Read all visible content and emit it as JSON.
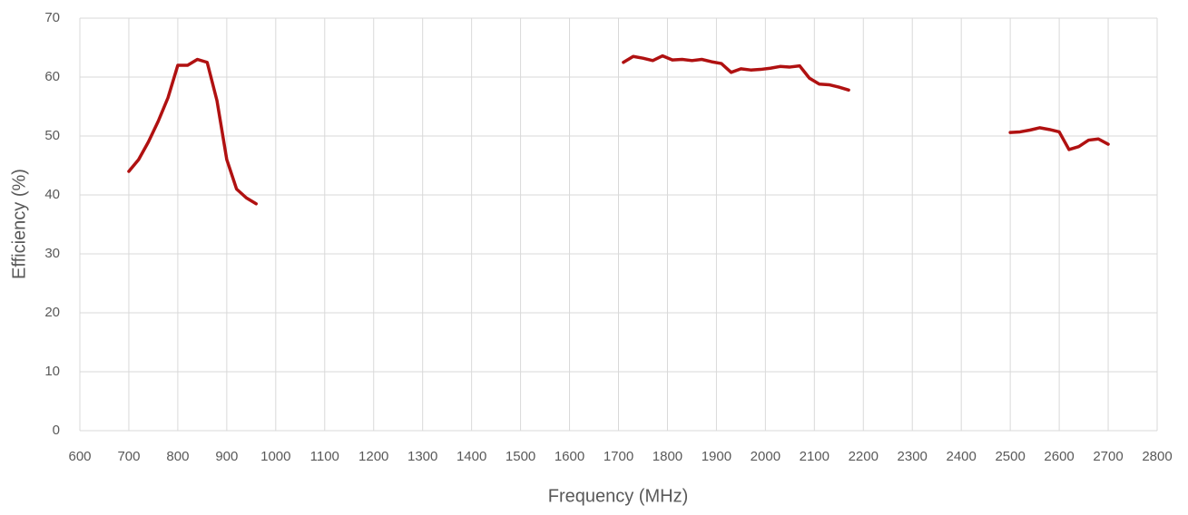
{
  "chart_data": {
    "type": "line",
    "x_label": "Frequency (MHz)",
    "y_label": "Efficiency (%)",
    "x": [
      700,
      720,
      740,
      760,
      780,
      800,
      820,
      840,
      860,
      880,
      900,
      920,
      940,
      960,
      1700,
      1710,
      1730,
      1750,
      1770,
      1790,
      1810,
      1830,
      1850,
      1870,
      1890,
      1910,
      1930,
      1950,
      1970,
      1990,
      2010,
      2030,
      2050,
      2070,
      2090,
      2110,
      2130,
      2150,
      2170,
      2400,
      2500,
      2520,
      2540,
      2560,
      2580,
      2600,
      2620,
      2640,
      2660,
      2680,
      2700
    ],
    "series": [
      {
        "color": "#b01111",
        "values": [
          44,
          46,
          49,
          52.5,
          56.5,
          62,
          62,
          63,
          62.5,
          56,
          46,
          41,
          39.5,
          38.5,
          null,
          62.5,
          63.5,
          63.2,
          62.8,
          63.6,
          62.9,
          63,
          62.8,
          63,
          62.6,
          62.3,
          60.8,
          61.4,
          61.2,
          61.3,
          61.5,
          61.8,
          61.7,
          61.9,
          59.8,
          58.8,
          58.7,
          58.3,
          57.8,
          null,
          50.6,
          50.7,
          51,
          51.4,
          51.1,
          50.7,
          47.7,
          48.2,
          49.3,
          49.5,
          48.6
        ]
      }
    ],
    "xlim": [
      600,
      2800
    ],
    "xticks": [
      600,
      700,
      800,
      900,
      1000,
      1100,
      1200,
      1300,
      1400,
      1500,
      1600,
      1700,
      1800,
      1900,
      2000,
      2100,
      2200,
      2300,
      2400,
      2500,
      2600,
      2700,
      2800
    ],
    "ylim": [
      0,
      70
    ],
    "yticks": [
      0,
      10,
      20,
      30,
      40,
      50,
      60,
      70
    ],
    "grid": true
  }
}
